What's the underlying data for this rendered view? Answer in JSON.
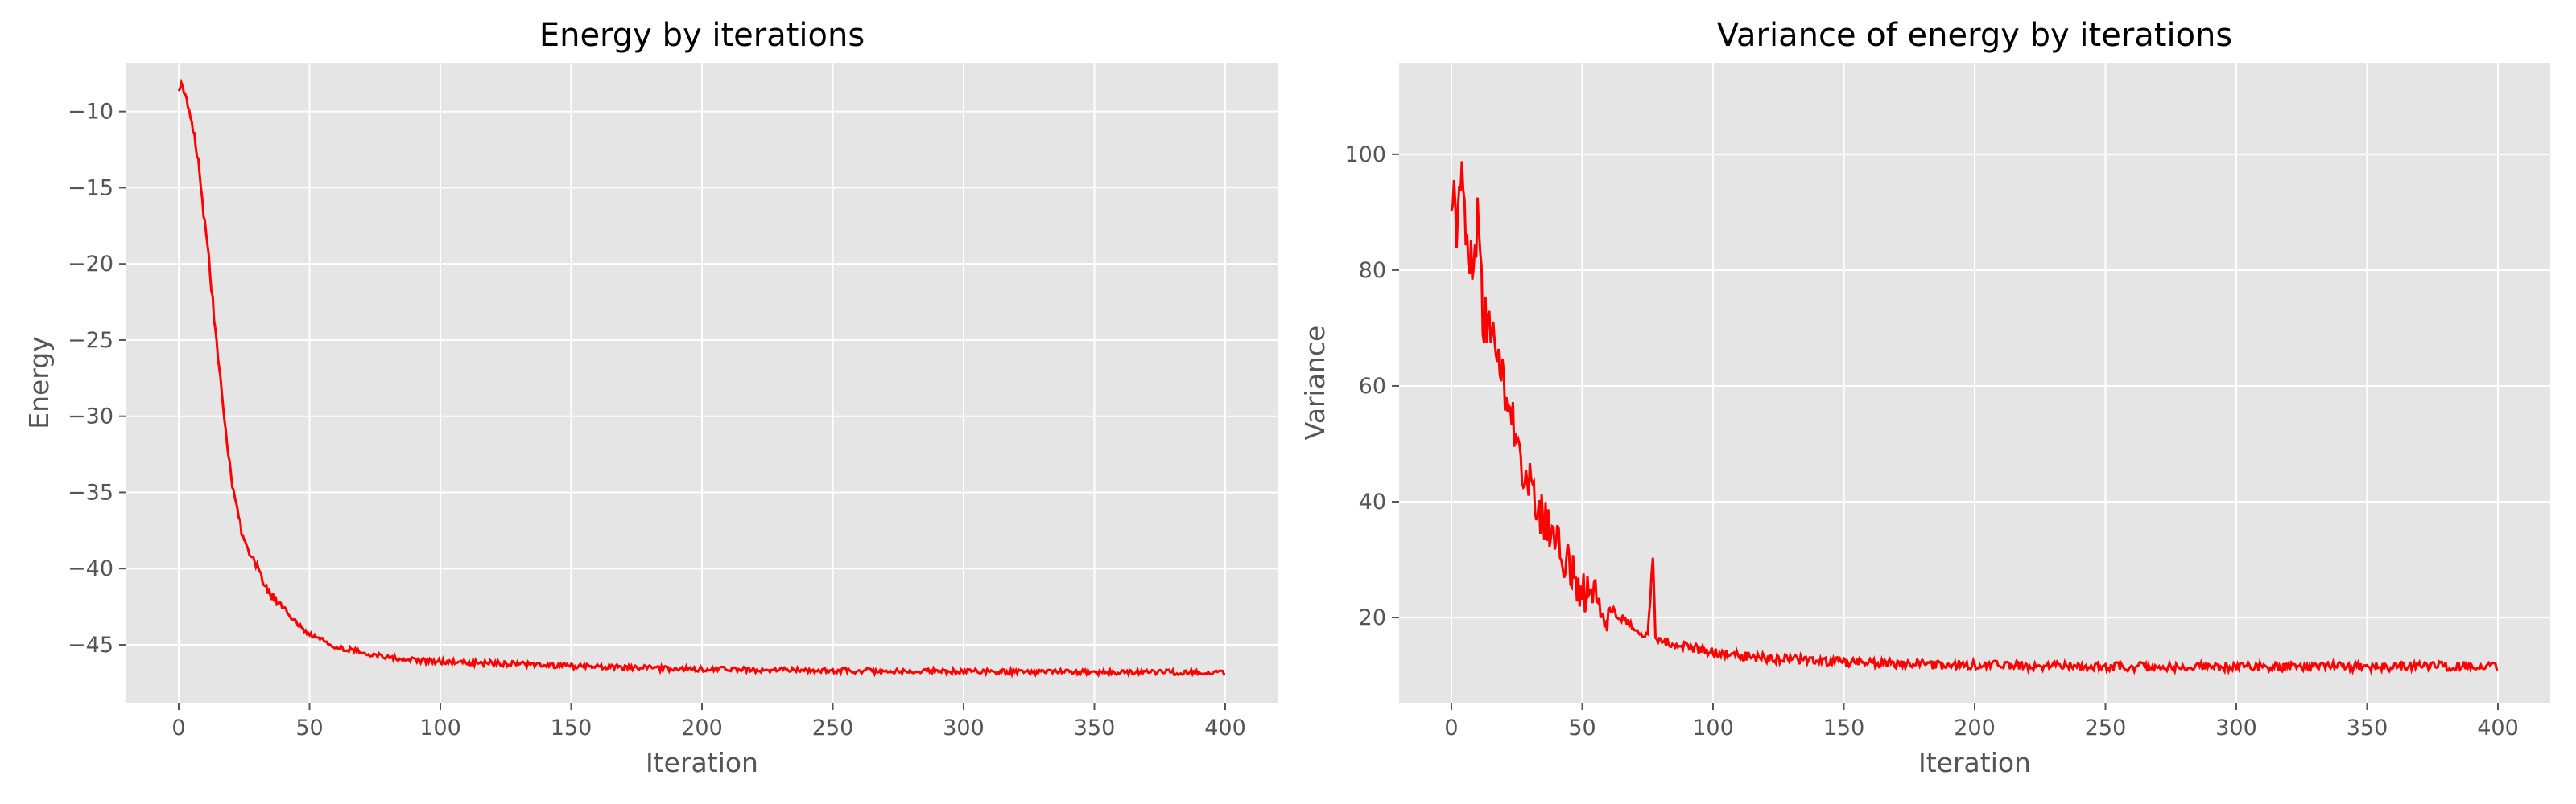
{
  "chart_data": [
    {
      "type": "line",
      "title": "Energy by iterations",
      "xlabel": "Iteration",
      "ylabel": "Energy",
      "xlim": [
        -20,
        420
      ],
      "ylim": [
        -48.8,
        -6.8
      ],
      "xticks": [
        0,
        50,
        100,
        150,
        200,
        250,
        300,
        350,
        400
      ],
      "yticks": [
        -45,
        -40,
        -35,
        -30,
        -25,
        -20,
        -15,
        -10
      ],
      "ytick_labels": [
        "−45",
        "−40",
        "−35",
        "−30",
        "−25",
        "−20",
        "−15",
        "−10"
      ],
      "grid": true,
      "background": "#e5e5e5",
      "series": [
        {
          "color": "#ff0000",
          "x": [
            0,
            2,
            4,
            6,
            8,
            10,
            12,
            14,
            16,
            18,
            20,
            22,
            24,
            26,
            28,
            30,
            35,
            40,
            45,
            50,
            60,
            70,
            80,
            90,
            100,
            120,
            150,
            200,
            250,
            300,
            350,
            400
          ],
          "y": [
            -8.3,
            -8.5,
            -9.8,
            -11.5,
            -14.0,
            -17.5,
            -20.5,
            -24.5,
            -27.8,
            -31.0,
            -34.0,
            -35.8,
            -37.5,
            -38.5,
            -39.0,
            -40.0,
            -41.8,
            -42.6,
            -43.6,
            -44.3,
            -45.1,
            -45.5,
            -45.8,
            -46.0,
            -46.1,
            -46.2,
            -46.4,
            -46.6,
            -46.7,
            -46.75,
            -46.8,
            -46.8
          ]
        }
      ]
    },
    {
      "type": "line",
      "title": "Variance of energy by iterations",
      "xlabel": "Iteration",
      "ylabel": "Variance",
      "xlim": [
        -20,
        420
      ],
      "ylim": [
        5.3,
        115.8
      ],
      "xticks": [
        0,
        50,
        100,
        150,
        200,
        250,
        300,
        350,
        400
      ],
      "yticks": [
        20,
        40,
        60,
        80,
        100
      ],
      "grid": true,
      "background": "#e5e5e5",
      "series": [
        {
          "color": "#ff0000",
          "x": [
            0,
            2,
            4,
            6,
            8,
            10,
            12,
            15,
            18,
            20,
            22,
            25,
            28,
            30,
            32,
            35,
            38,
            40,
            45,
            50,
            55,
            60,
            65,
            70,
            75,
            77,
            78,
            80,
            85,
            90,
            100,
            110,
            120,
            130,
            150,
            170,
            200,
            250,
            300,
            350,
            400
          ],
          "y": [
            95,
            88,
            100,
            85,
            80,
            88,
            72,
            68,
            65,
            60,
            55,
            52,
            46,
            42,
            40,
            36,
            34,
            32,
            28,
            25,
            23,
            22,
            20,
            18,
            17,
            30,
            17,
            16,
            15.5,
            15,
            14,
            13.5,
            13,
            12.8,
            12.3,
            12,
            11.8,
            11.5,
            11.5,
            11.5,
            11.7
          ]
        }
      ]
    }
  ]
}
